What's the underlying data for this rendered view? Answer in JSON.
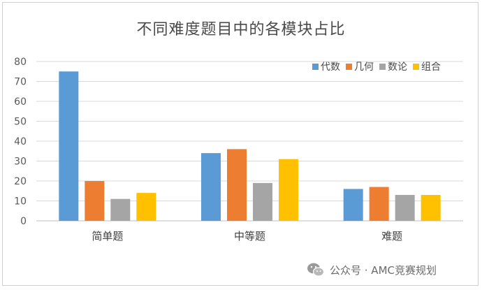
{
  "chart_data": {
    "type": "bar",
    "title": "不同难度题目中的各模块占比",
    "categories": [
      "简单题",
      "中等题",
      "难题"
    ],
    "series": [
      {
        "name": "代数",
        "color": "#5b9bd5",
        "values": [
          75,
          34,
          16
        ]
      },
      {
        "name": "几何",
        "color": "#ed7d31",
        "values": [
          20,
          36,
          17
        ]
      },
      {
        "name": "数论",
        "color": "#a5a5a5",
        "values": [
          11,
          19,
          13
        ]
      },
      {
        "name": "组合",
        "color": "#ffc000",
        "values": [
          14,
          31,
          13
        ]
      }
    ],
    "ylim": [
      0,
      80
    ],
    "yticks": [
      "0",
      "10",
      "20",
      "30",
      "40",
      "50",
      "60",
      "70",
      "80"
    ],
    "grid": true,
    "legend_position": "top-right",
    "xlabel": "",
    "ylabel": ""
  },
  "watermark": {
    "icon": "wechat-icon",
    "text": "公众号 · AMC竞赛规划"
  }
}
